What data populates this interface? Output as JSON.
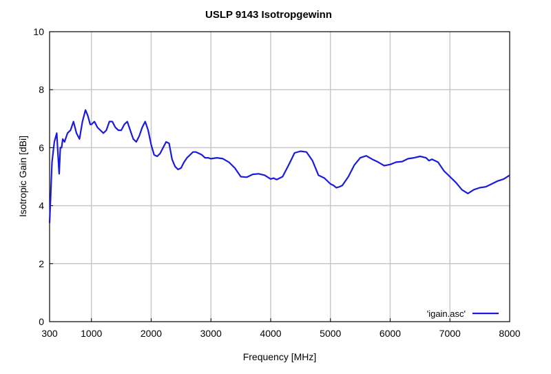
{
  "chart_data": {
    "type": "line",
    "title": "USLP 9143 Isotropgewinn",
    "xlabel": "Frequency [MHz]",
    "ylabel": "Isotropic Gain [dBi]",
    "xlim": [
      300,
      8000
    ],
    "ylim": [
      0,
      10
    ],
    "xticks": [
      300,
      1000,
      2000,
      3000,
      4000,
      5000,
      6000,
      7000,
      8000
    ],
    "xtick_labels": [
      "300",
      "1000",
      "2000",
      "3000",
      "4000",
      "5000",
      "6000",
      "7000",
      "8000"
    ],
    "yticks": [
      0,
      2,
      4,
      6,
      8,
      10
    ],
    "ytick_labels": [
      "0",
      "2",
      "4",
      "6",
      "8",
      "10"
    ],
    "grid": true,
    "legend_position": "bottom-right",
    "colors": {
      "series": "#1a1adc",
      "grid": "#c8c8c8",
      "axis": "#000000"
    },
    "series": [
      {
        "name": "'igain.asc'",
        "x": [
          300,
          340,
          380,
          420,
          440,
          460,
          480,
          500,
          520,
          550,
          600,
          650,
          700,
          750,
          800,
          850,
          900,
          940,
          980,
          1000,
          1050,
          1100,
          1150,
          1200,
          1250,
          1300,
          1350,
          1400,
          1450,
          1500,
          1550,
          1600,
          1650,
          1700,
          1750,
          1800,
          1850,
          1900,
          1950,
          2000,
          2050,
          2100,
          2150,
          2200,
          2250,
          2300,
          2350,
          2400,
          2450,
          2500,
          2550,
          2600,
          2650,
          2700,
          2750,
          2800,
          2850,
          2900,
          2950,
          3000,
          3100,
          3200,
          3300,
          3400,
          3500,
          3600,
          3700,
          3800,
          3900,
          4000,
          4050,
          4100,
          4150,
          4200,
          4300,
          4400,
          4500,
          4600,
          4700,
          4800,
          4900,
          5000,
          5050,
          5100,
          5150,
          5200,
          5300,
          5400,
          5500,
          5600,
          5700,
          5800,
          5900,
          6000,
          6100,
          6200,
          6300,
          6400,
          6500,
          6600,
          6650,
          6700,
          6800,
          6900,
          7000,
          7100,
          7200,
          7300,
          7400,
          7500,
          7600,
          7700,
          7800,
          7900,
          8000
        ],
        "y": [
          3.4,
          5.5,
          6.2,
          6.5,
          5.8,
          5.1,
          6.0,
          6.0,
          6.3,
          6.2,
          6.5,
          6.6,
          6.9,
          6.5,
          6.3,
          6.9,
          7.3,
          7.1,
          6.8,
          6.8,
          6.9,
          6.7,
          6.6,
          6.5,
          6.6,
          6.9,
          6.9,
          6.7,
          6.6,
          6.6,
          6.8,
          6.9,
          6.6,
          6.3,
          6.2,
          6.4,
          6.7,
          6.9,
          6.6,
          6.1,
          5.75,
          5.7,
          5.8,
          6.0,
          6.2,
          6.15,
          5.6,
          5.35,
          5.25,
          5.3,
          5.5,
          5.65,
          5.75,
          5.85,
          5.85,
          5.8,
          5.75,
          5.65,
          5.65,
          5.62,
          5.65,
          5.62,
          5.5,
          5.3,
          5.0,
          4.98,
          5.08,
          5.1,
          5.05,
          4.92,
          4.95,
          4.9,
          4.95,
          5.0,
          5.4,
          5.82,
          5.88,
          5.85,
          5.55,
          5.05,
          4.95,
          4.75,
          4.7,
          4.62,
          4.65,
          4.7,
          5.0,
          5.4,
          5.65,
          5.72,
          5.6,
          5.5,
          5.38,
          5.42,
          5.5,
          5.52,
          5.62,
          5.65,
          5.7,
          5.65,
          5.55,
          5.6,
          5.5,
          5.2,
          5.0,
          4.8,
          4.55,
          4.42,
          4.55,
          4.62,
          4.65,
          4.75,
          4.85,
          4.92,
          5.05
        ]
      }
    ]
  }
}
